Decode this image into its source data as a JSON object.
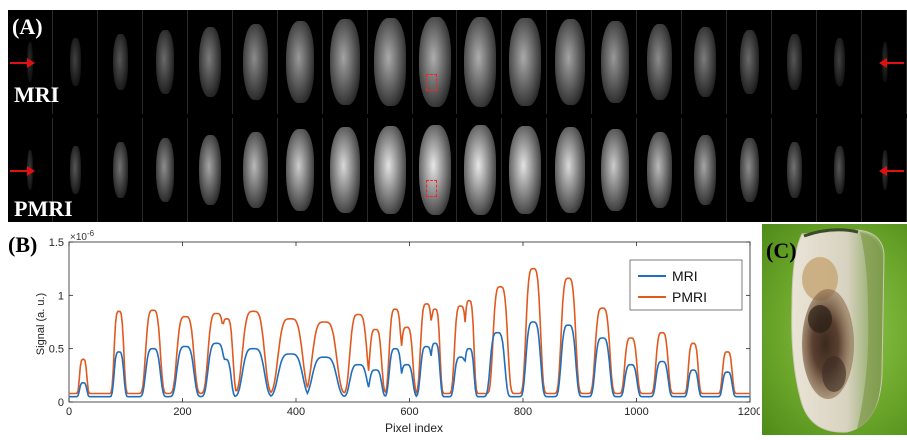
{
  "panel_a": {
    "label": "(A)",
    "rows": [
      {
        "label": "MRI",
        "brightness": 0.75
      },
      {
        "label": "PMRI",
        "brightness": 1.0
      }
    ],
    "frame_count": 20
  },
  "panel_b": {
    "label": "(B)",
    "exponent_label": "×10",
    "exponent_power": "-6"
  },
  "panel_c": {
    "label": "(C)"
  },
  "chart_data": {
    "type": "line",
    "title": "",
    "xlabel": "Pixel index",
    "ylabel": "Signal (a. u.)",
    "xlim": [
      0,
      1200
    ],
    "ylim": [
      0,
      1.5
    ],
    "y_scale_note": "×10^-6",
    "x_ticks": [
      0,
      200,
      400,
      600,
      800,
      1000,
      1200
    ],
    "y_ticks": [
      0,
      0.5,
      1,
      1.5
    ],
    "legend_position": "upper-right",
    "series": [
      {
        "name": "MRI",
        "color": "#1f6fbf",
        "peaks": [
          {
            "center": 25,
            "width": 6,
            "height": 0.18
          },
          {
            "center": 88,
            "width": 8,
            "height": 0.47
          },
          {
            "center": 148,
            "width": 12,
            "height": 0.5
          },
          {
            "center": 205,
            "width": 14,
            "height": 0.52
          },
          {
            "center": 260,
            "width": 14,
            "height": 0.55
          },
          {
            "center": 275,
            "width": 10,
            "height": 0.4
          },
          {
            "center": 325,
            "width": 18,
            "height": 0.5
          },
          {
            "center": 390,
            "width": 20,
            "height": 0.45
          },
          {
            "center": 450,
            "width": 20,
            "height": 0.42
          },
          {
            "center": 510,
            "width": 14,
            "height": 0.35
          },
          {
            "center": 540,
            "width": 10,
            "height": 0.3
          },
          {
            "center": 575,
            "width": 10,
            "height": 0.5
          },
          {
            "center": 595,
            "width": 10,
            "height": 0.35
          },
          {
            "center": 630,
            "width": 10,
            "height": 0.52
          },
          {
            "center": 645,
            "width": 8,
            "height": 0.55
          },
          {
            "center": 690,
            "width": 10,
            "height": 0.42
          },
          {
            "center": 705,
            "width": 8,
            "height": 0.5
          },
          {
            "center": 755,
            "width": 12,
            "height": 0.65
          },
          {
            "center": 818,
            "width": 12,
            "height": 0.75
          },
          {
            "center": 880,
            "width": 12,
            "height": 0.72
          },
          {
            "center": 940,
            "width": 12,
            "height": 0.6
          },
          {
            "center": 990,
            "width": 10,
            "height": 0.35
          },
          {
            "center": 1045,
            "width": 10,
            "height": 0.38
          },
          {
            "center": 1100,
            "width": 8,
            "height": 0.3
          },
          {
            "center": 1160,
            "width": 8,
            "height": 0.28
          }
        ],
        "baseline": 0.05
      },
      {
        "name": "PMRI",
        "color": "#e05a1f",
        "peaks": [
          {
            "center": 25,
            "width": 6,
            "height": 0.4
          },
          {
            "center": 88,
            "width": 8,
            "height": 0.85
          },
          {
            "center": 148,
            "width": 12,
            "height": 0.86
          },
          {
            "center": 205,
            "width": 14,
            "height": 0.8
          },
          {
            "center": 260,
            "width": 14,
            "height": 0.83
          },
          {
            "center": 278,
            "width": 10,
            "height": 0.78
          },
          {
            "center": 325,
            "width": 18,
            "height": 0.85
          },
          {
            "center": 390,
            "width": 20,
            "height": 0.78
          },
          {
            "center": 450,
            "width": 20,
            "height": 0.75
          },
          {
            "center": 510,
            "width": 14,
            "height": 0.82
          },
          {
            "center": 540,
            "width": 10,
            "height": 0.68
          },
          {
            "center": 575,
            "width": 10,
            "height": 0.87
          },
          {
            "center": 595,
            "width": 10,
            "height": 0.7
          },
          {
            "center": 630,
            "width": 10,
            "height": 0.92
          },
          {
            "center": 645,
            "width": 8,
            "height": 0.87
          },
          {
            "center": 690,
            "width": 10,
            "height": 0.9
          },
          {
            "center": 705,
            "width": 8,
            "height": 0.95
          },
          {
            "center": 760,
            "width": 12,
            "height": 1.08
          },
          {
            "center": 818,
            "width": 12,
            "height": 1.25
          },
          {
            "center": 880,
            "width": 12,
            "height": 1.16
          },
          {
            "center": 940,
            "width": 12,
            "height": 0.88
          },
          {
            "center": 990,
            "width": 10,
            "height": 0.6
          },
          {
            "center": 1045,
            "width": 10,
            "height": 0.65
          },
          {
            "center": 1100,
            "width": 8,
            "height": 0.55
          },
          {
            "center": 1160,
            "width": 8,
            "height": 0.47
          }
        ],
        "baseline": 0.08
      }
    ]
  }
}
